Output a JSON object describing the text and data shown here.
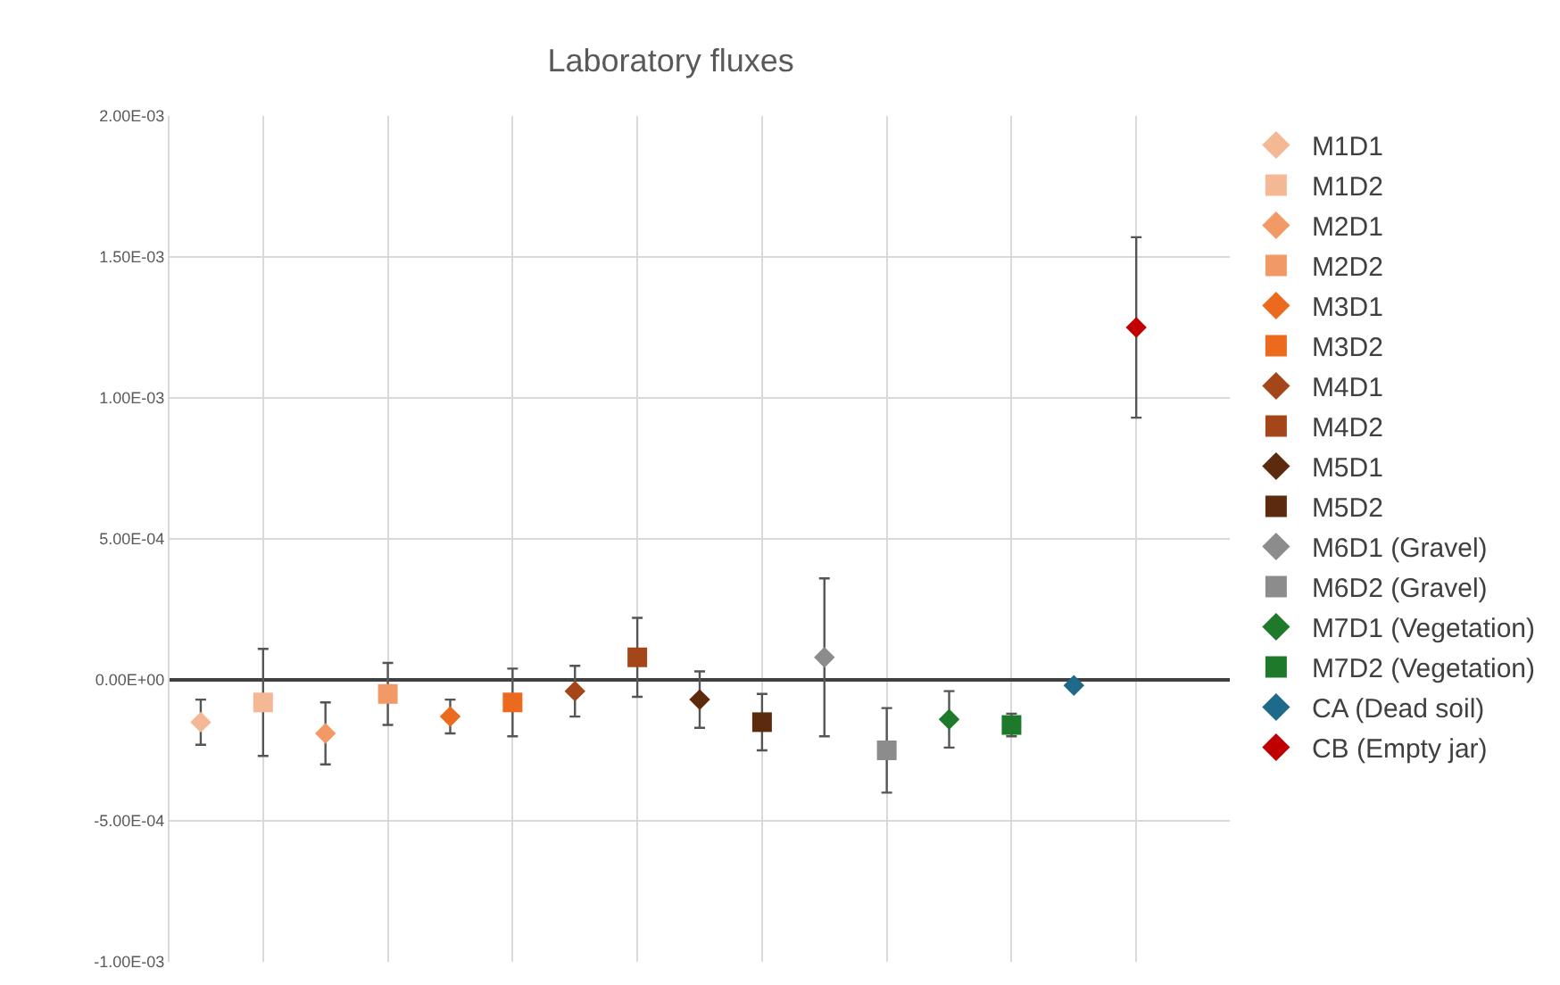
{
  "chart_data": {
    "type": "scatter",
    "title": "Laboratory fluxes",
    "categories": [
      null,
      null,
      null,
      null,
      null,
      null,
      null,
      null,
      null,
      null,
      null,
      null,
      null,
      null,
      null,
      null,
      null
    ],
    "ylim": [
      -0.001,
      0.002
    ],
    "yticks": [
      {
        "value": -0.001,
        "label": "-1.00E-03"
      },
      {
        "value": -0.0005,
        "label": "-5.00E-04"
      },
      {
        "value": 0,
        "label": "0.00E+00"
      },
      {
        "value": 0.0005,
        "label": "5.00E-04"
      },
      {
        "value": 0.001,
        "label": "1.00E-03"
      },
      {
        "value": 0.0015,
        "label": "1.50E-03"
      },
      {
        "value": 0.002,
        "label": "2.00E-03"
      }
    ],
    "tick_labels": "y",
    "grid": true,
    "legend": "right",
    "series": [
      {
        "name": "M1D1",
        "color": "#f4b895",
        "marker": "diamond",
        "values": [
          -0.00015,
          null,
          null,
          null,
          null,
          null,
          null,
          null,
          null,
          null,
          null,
          null,
          null,
          null,
          null,
          null,
          null
        ],
        "errors": [
          8e-05,
          null,
          null,
          null,
          null,
          null,
          null,
          null,
          null,
          null,
          null,
          null,
          null,
          null,
          null,
          null,
          null
        ]
      },
      {
        "name": "M1D2",
        "color": "#f4b895",
        "marker": "square",
        "values": [
          null,
          -8e-05,
          null,
          null,
          null,
          null,
          null,
          null,
          null,
          null,
          null,
          null,
          null,
          null,
          null,
          null,
          null
        ],
        "errors": [
          null,
          0.00019,
          null,
          null,
          null,
          null,
          null,
          null,
          null,
          null,
          null,
          null,
          null,
          null,
          null,
          null,
          null
        ]
      },
      {
        "name": "M2D1",
        "color": "#f29a65",
        "marker": "diamond",
        "values": [
          null,
          null,
          -0.00019,
          null,
          null,
          null,
          null,
          null,
          null,
          null,
          null,
          null,
          null,
          null,
          null,
          null,
          null
        ],
        "errors": [
          null,
          null,
          0.00011,
          null,
          null,
          null,
          null,
          null,
          null,
          null,
          null,
          null,
          null,
          null,
          null,
          null,
          null
        ]
      },
      {
        "name": "M2D2",
        "color": "#f29a65",
        "marker": "square",
        "values": [
          null,
          null,
          null,
          -5e-05,
          null,
          null,
          null,
          null,
          null,
          null,
          null,
          null,
          null,
          null,
          null,
          null,
          null
        ],
        "errors": [
          null,
          null,
          null,
          0.00011,
          null,
          null,
          null,
          null,
          null,
          null,
          null,
          null,
          null,
          null,
          null,
          null,
          null
        ]
      },
      {
        "name": "M3D1",
        "color": "#ec6a1e",
        "marker": "diamond",
        "values": [
          null,
          null,
          null,
          null,
          -0.00013,
          null,
          null,
          null,
          null,
          null,
          null,
          null,
          null,
          null,
          null,
          null,
          null
        ],
        "errors": [
          null,
          null,
          null,
          null,
          6e-05,
          null,
          null,
          null,
          null,
          null,
          null,
          null,
          null,
          null,
          null,
          null,
          null
        ]
      },
      {
        "name": "M3D2",
        "color": "#ec6a1e",
        "marker": "square",
        "values": [
          null,
          null,
          null,
          null,
          null,
          -8e-05,
          null,
          null,
          null,
          null,
          null,
          null,
          null,
          null,
          null,
          null,
          null
        ],
        "errors": [
          null,
          null,
          null,
          null,
          null,
          0.00012,
          null,
          null,
          null,
          null,
          null,
          null,
          null,
          null,
          null,
          null,
          null
        ]
      },
      {
        "name": "M4D1",
        "color": "#a4461a",
        "marker": "diamond",
        "values": [
          null,
          null,
          null,
          null,
          null,
          null,
          -4e-05,
          null,
          null,
          null,
          null,
          null,
          null,
          null,
          null,
          null,
          null
        ],
        "errors": [
          null,
          null,
          null,
          null,
          null,
          null,
          9e-05,
          null,
          null,
          null,
          null,
          null,
          null,
          null,
          null,
          null,
          null
        ]
      },
      {
        "name": "M4D2",
        "color": "#a4461a",
        "marker": "square",
        "values": [
          null,
          null,
          null,
          null,
          null,
          null,
          null,
          8e-05,
          null,
          null,
          null,
          null,
          null,
          null,
          null,
          null,
          null
        ],
        "errors": [
          null,
          null,
          null,
          null,
          null,
          null,
          null,
          0.00014,
          null,
          null,
          null,
          null,
          null,
          null,
          null,
          null,
          null
        ]
      },
      {
        "name": "M5D1",
        "color": "#5c2a0c",
        "marker": "diamond",
        "values": [
          null,
          null,
          null,
          null,
          null,
          null,
          null,
          null,
          -7e-05,
          null,
          null,
          null,
          null,
          null,
          null,
          null,
          null
        ],
        "errors": [
          null,
          null,
          null,
          null,
          null,
          null,
          null,
          null,
          0.0001,
          null,
          null,
          null,
          null,
          null,
          null,
          null,
          null
        ]
      },
      {
        "name": "M5D2",
        "color": "#5c2a0c",
        "marker": "square",
        "values": [
          null,
          null,
          null,
          null,
          null,
          null,
          null,
          null,
          null,
          -0.00015,
          null,
          null,
          null,
          null,
          null,
          null,
          null
        ],
        "errors": [
          null,
          null,
          null,
          null,
          null,
          null,
          null,
          null,
          null,
          0.0001,
          null,
          null,
          null,
          null,
          null,
          null,
          null
        ]
      },
      {
        "name": "M6D1 (Gravel)",
        "color": "#8c8c8c",
        "marker": "diamond",
        "values": [
          null,
          null,
          null,
          null,
          null,
          null,
          null,
          null,
          null,
          null,
          8e-05,
          null,
          null,
          null,
          null,
          null,
          null
        ],
        "errors": [
          null,
          null,
          null,
          null,
          null,
          null,
          null,
          null,
          null,
          null,
          0.00028,
          null,
          null,
          null,
          null,
          null,
          null
        ]
      },
      {
        "name": "M6D2 (Gravel)",
        "color": "#8c8c8c",
        "marker": "square",
        "values": [
          null,
          null,
          null,
          null,
          null,
          null,
          null,
          null,
          null,
          null,
          null,
          -0.00025,
          null,
          null,
          null,
          null,
          null
        ],
        "errors": [
          null,
          null,
          null,
          null,
          null,
          null,
          null,
          null,
          null,
          null,
          null,
          0.00015,
          null,
          null,
          null,
          null,
          null
        ]
      },
      {
        "name": "M7D1 (Vegetation)",
        "color": "#1e7a2a",
        "marker": "diamond",
        "values": [
          null,
          null,
          null,
          null,
          null,
          null,
          null,
          null,
          null,
          null,
          null,
          null,
          -0.00014,
          null,
          null,
          null,
          null
        ],
        "errors": [
          null,
          null,
          null,
          null,
          null,
          null,
          null,
          null,
          null,
          null,
          null,
          null,
          0.0001,
          null,
          null,
          null,
          null
        ]
      },
      {
        "name": "M7D2 (Vegetation)",
        "color": "#1e7a2a",
        "marker": "square",
        "values": [
          null,
          null,
          null,
          null,
          null,
          null,
          null,
          null,
          null,
          null,
          null,
          null,
          null,
          -0.00016,
          null,
          null,
          null
        ],
        "errors": [
          null,
          null,
          null,
          null,
          null,
          null,
          null,
          null,
          null,
          null,
          null,
          null,
          null,
          4e-05,
          null,
          null,
          null
        ]
      },
      {
        "name": "CA (Dead soil)",
        "color": "#1f6a8a",
        "marker": "diamond",
        "values": [
          null,
          null,
          null,
          null,
          null,
          null,
          null,
          null,
          null,
          null,
          null,
          null,
          null,
          null,
          -2e-05,
          null,
          null
        ]
      },
      {
        "name": "CB (Empty jar)",
        "color": "#c00000",
        "marker": "diamond",
        "values": [
          null,
          null,
          null,
          null,
          null,
          null,
          null,
          null,
          null,
          null,
          null,
          null,
          null,
          null,
          null,
          0.00125,
          null
        ],
        "errors": [
          null,
          null,
          null,
          null,
          null,
          null,
          null,
          null,
          null,
          null,
          null,
          null,
          null,
          null,
          null,
          0.00032,
          null
        ]
      }
    ]
  }
}
